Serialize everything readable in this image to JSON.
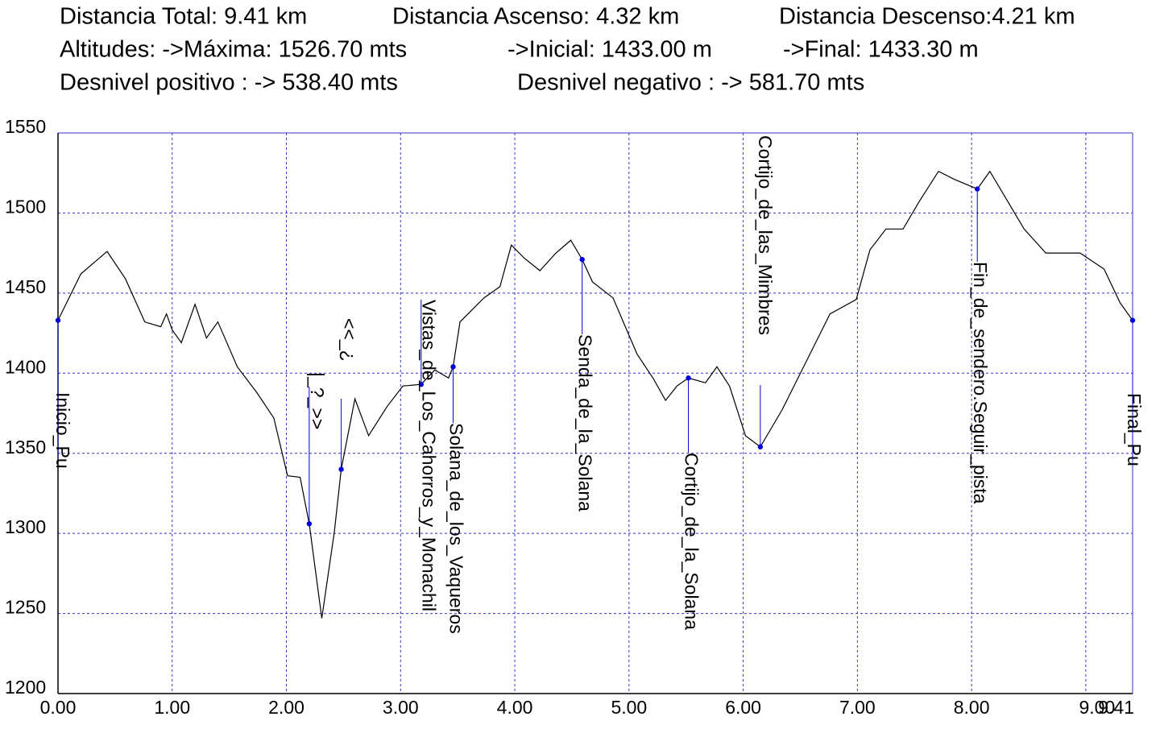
{
  "header": [
    [
      "Distancia Total: 9.41 km",
      "Distancia Ascenso: 4.32 km",
      "Distancia Descenso:4.21 km"
    ],
    [
      "Altitudes: ->Máxima: 1526.70 mts",
      "->Inicial: 1433.00 m",
      "->Final: 1433.30 m"
    ],
    [
      "Desnivel positivo : -> 538.40 mts",
      "Desnivel negativo : -> 581.70 mts"
    ]
  ],
  "chart_data": {
    "type": "line",
    "color": "#000000",
    "grid": true,
    "grid_color": "#3333cc",
    "marker_color": "#0000dd",
    "xlim": [
      0,
      9.41
    ],
    "ylim": [
      1200,
      1550
    ],
    "xticks": [
      {
        "value": 0,
        "label": "0.00"
      },
      {
        "value": 1,
        "label": "1.00"
      },
      {
        "value": 2,
        "label": "2.00"
      },
      {
        "value": 3,
        "label": "3.00"
      },
      {
        "value": 4,
        "label": "4.00"
      },
      {
        "value": 5,
        "label": "5.00"
      },
      {
        "value": 6,
        "label": "6.00"
      },
      {
        "value": 7,
        "label": "7.00"
      },
      {
        "value": 8,
        "label": "8.00"
      },
      {
        "value": 9,
        "label": "9.00"
      },
      {
        "value": 9.41,
        "label": "9.41"
      }
    ],
    "yticks": [
      1200,
      1250,
      1300,
      1350,
      1400,
      1450,
      1500,
      1550
    ],
    "x": [
      0,
      0.2,
      0.43,
      0.59,
      0.76,
      0.9,
      0.95,
      1.0,
      1.08,
      1.2,
      1.3,
      1.4,
      1.57,
      1.74,
      1.89,
      2.01,
      2.12,
      2.2,
      2.31,
      2.42,
      2.48,
      2.6,
      2.72,
      2.88,
      3.02,
      3.18,
      3.3,
      3.42,
      3.46,
      3.52,
      3.73,
      3.87,
      3.97,
      4.08,
      4.22,
      4.36,
      4.49,
      4.59,
      4.68,
      4.86,
      5.07,
      5.21,
      5.32,
      5.42,
      5.52,
      5.67,
      5.77,
      5.88,
      6.02,
      6.15,
      6.34,
      6.55,
      6.76,
      6.99,
      7.11,
      7.25,
      7.4,
      7.54,
      7.71,
      7.85,
      8.05,
      8.16,
      8.46,
      8.65,
      8.95,
      9.16,
      9.3,
      9.41
    ],
    "values": [
      1433,
      1462,
      1476,
      1459,
      1432,
      1429,
      1437,
      1427,
      1419,
      1443,
      1422,
      1432,
      1404,
      1388,
      1372,
      1336,
      1335,
      1306,
      1247,
      1301,
      1340,
      1384,
      1361,
      1379,
      1392,
      1393,
      1402,
      1397,
      1404,
      1432,
      1447,
      1454,
      1480,
      1472,
      1464,
      1475,
      1483,
      1471,
      1457,
      1447,
      1412,
      1397,
      1383,
      1392,
      1397,
      1394,
      1404,
      1392,
      1361,
      1354,
      1377,
      1407,
      1437,
      1446,
      1477,
      1490,
      1490,
      1507,
      1526,
      1521,
      1515,
      1526,
      1490,
      1475,
      1475,
      1465,
      1444,
      1433
    ],
    "waypoints": [
      {
        "label": "Inicio_Pu",
        "x": 0,
        "y": 1433
      },
      {
        "label": "|_?_>>",
        "x": 2.2,
        "y": 1306
      },
      {
        "label": "<<_¿",
        "x": 2.48,
        "y": 1340
      },
      {
        "label": "Vistas_de_Los_Cahorros_y_Monachil",
        "x": 3.18,
        "y": 1393
      },
      {
        "label": "Solana_de_los_Vaqueros",
        "x": 3.46,
        "y": 1404
      },
      {
        "label": "Senda_de_la_Solana",
        "x": 4.59,
        "y": 1471
      },
      {
        "label": "Cortijo_de_la_Solana",
        "x": 5.52,
        "y": 1397
      },
      {
        "label": "Cortijo_de_las_Mimbres",
        "x": 6.15,
        "y": 1354
      },
      {
        "label": "Fin_de_sendero.Seguir_pista",
        "x": 8.05,
        "y": 1515
      },
      {
        "label": "Final_Pu",
        "x": 9.41,
        "y": 1433
      }
    ]
  }
}
